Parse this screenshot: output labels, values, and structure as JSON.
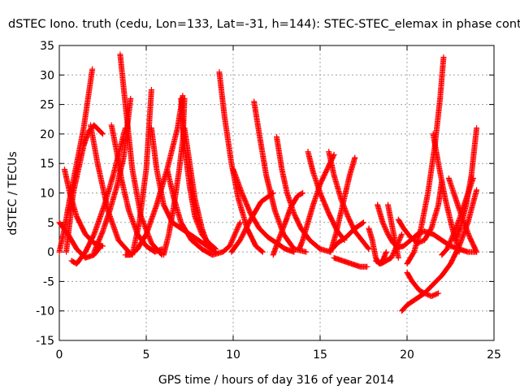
{
  "chart_data": {
    "type": "scatter",
    "title": "dSTEC Iono. truth (cedu, Lon=133, Lat=-31, h=144): STEC-STEC_elemax in phase cont",
    "xlabel": "GPS time / hours of day 316 of year 2014",
    "ylabel": "dSTEC  / TECUs",
    "xlim": [
      0,
      25
    ],
    "ylim": [
      -15,
      35
    ],
    "xticks": [
      0,
      5,
      10,
      15,
      20,
      25
    ],
    "yticks": [
      -15,
      -10,
      -5,
      0,
      5,
      10,
      15,
      20,
      25,
      30,
      35
    ],
    "xtick_labels": [
      "0",
      "5",
      "10",
      "15",
      "20",
      "25"
    ],
    "ytick_labels": [
      "-15",
      "-10",
      "-5",
      "0",
      "5",
      "10",
      "15",
      "20",
      "25",
      "30",
      "35"
    ],
    "grid": true,
    "marker": "plus",
    "color": "#ff0000",
    "series": [
      {
        "x": [
          0.0,
          0.3,
          0.6,
          1.0,
          1.4,
          1.9
        ],
        "y": [
          0.0,
          4.0,
          9.0,
          15.0,
          21.0,
          31.0
        ]
      },
      {
        "x": [
          0.0,
          0.5,
          1.0,
          1.5,
          2.0,
          2.4
        ],
        "y": [
          5.0,
          3.0,
          0.5,
          -1.0,
          -0.5,
          1.0
        ]
      },
      {
        "x": [
          0.3,
          0.6,
          1.0,
          1.5,
          2.0,
          2.5
        ],
        "y": [
          14.0,
          10.0,
          6.0,
          3.0,
          1.5,
          1.0
        ]
      },
      {
        "x": [
          0.4,
          0.6,
          0.8,
          1.1,
          1.4,
          1.7,
          2.0,
          2.5
        ],
        "y": [
          0.0,
          5.0,
          10.0,
          14.0,
          18.0,
          20.5,
          21.5,
          20.0
        ]
      },
      {
        "x": [
          0.7,
          1.0,
          1.5,
          2.0,
          2.6,
          3.1,
          3.8
        ],
        "y": [
          -1.5,
          -2.0,
          0.0,
          3.0,
          8.0,
          13.0,
          21.0
        ]
      },
      {
        "x": [
          1.8,
          2.2,
          2.8,
          3.4,
          4.0
        ],
        "y": [
          21.5,
          15.0,
          7.0,
          2.0,
          0.0
        ]
      },
      {
        "x": [
          2.0,
          2.5,
          2.9,
          3.3,
          3.7,
          4.1
        ],
        "y": [
          0.0,
          3.5,
          7.0,
          11.0,
          16.0,
          26.0
        ]
      },
      {
        "x": [
          3.0,
          3.3,
          3.6,
          4.0,
          4.5,
          5.0,
          5.5,
          5.9
        ],
        "y": [
          21.5,
          17.0,
          12.0,
          7.0,
          3.0,
          1.0,
          0.0,
          0.5
        ]
      },
      {
        "x": [
          3.5,
          3.8,
          4.2,
          4.7,
          5.3,
          5.9
        ],
        "y": [
          33.5,
          25.0,
          14.0,
          6.0,
          1.5,
          -0.5
        ]
      },
      {
        "x": [
          3.8,
          4.1,
          4.5,
          5.0,
          5.6,
          6.2,
          6.8,
          7.1
        ],
        "y": [
          -0.5,
          -0.5,
          0.5,
          3.0,
          8.0,
          14.0,
          21.0,
          26.5
        ]
      },
      {
        "x": [
          4.2,
          4.6,
          5.0,
          5.3
        ],
        "y": [
          -0.5,
          5.0,
          14.0,
          27.5
        ]
      },
      {
        "x": [
          5.3,
          5.6,
          6.0,
          6.5,
          7.0,
          7.5,
          8.0,
          8.5,
          9.0
        ],
        "y": [
          21.0,
          14.0,
          8.0,
          5.0,
          4.0,
          3.0,
          2.0,
          1.0,
          0.0
        ]
      },
      {
        "x": [
          6.0,
          6.3,
          6.6,
          6.9,
          7.1,
          7.2
        ],
        "y": [
          -0.5,
          3.0,
          8.0,
          14.0,
          19.0,
          26.0
        ]
      },
      {
        "x": [
          6.2,
          6.6,
          7.0,
          7.6,
          8.2,
          8.8,
          9.4,
          9.8,
          10.4
        ],
        "y": [
          14.0,
          9.0,
          5.0,
          2.0,
          0.5,
          -0.5,
          0.0,
          1.0,
          5.0
        ]
      },
      {
        "x": [
          7.0,
          7.2,
          7.5,
          7.8,
          8.2,
          8.6,
          9.0
        ],
        "y": [
          26.0,
          18.0,
          11.0,
          6.0,
          3.0,
          1.5,
          0.5
        ]
      },
      {
        "x": [
          7.2,
          7.5,
          7.8,
          8.2,
          8.5
        ],
        "y": [
          21.0,
          15.0,
          9.0,
          4.0,
          1.5
        ]
      },
      {
        "x": [
          9.2,
          9.5,
          9.9,
          10.3,
          10.8,
          11.3,
          11.7
        ],
        "y": [
          30.5,
          23.0,
          15.0,
          9.0,
          4.0,
          1.0,
          0.0
        ]
      },
      {
        "x": [
          9.9,
          10.4,
          11.0,
          11.6,
          12.3
        ],
        "y": [
          0.0,
          2.0,
          5.5,
          8.5,
          10.0
        ]
      },
      {
        "x": [
          10.0,
          10.5,
          11.0,
          11.5,
          12.0,
          12.5,
          13.0,
          13.5
        ],
        "y": [
          14.0,
          10.0,
          6.5,
          4.0,
          2.5,
          1.5,
          0.5,
          0.0
        ]
      },
      {
        "x": [
          11.2,
          11.5,
          11.9,
          12.4,
          12.9,
          13.5,
          14.2
        ],
        "y": [
          25.5,
          20.0,
          13.0,
          7.0,
          3.0,
          0.5,
          0.0
        ]
      },
      {
        "x": [
          12.3,
          12.6,
          13.0,
          13.3,
          13.7,
          14.0
        ],
        "y": [
          -0.5,
          2.0,
          5.0,
          7.5,
          9.5,
          10.0
        ]
      },
      {
        "x": [
          12.5,
          12.8,
          13.1,
          13.5,
          13.9,
          14.4,
          15.0,
          15.6
        ],
        "y": [
          19.5,
          14.0,
          10.0,
          6.5,
          4.0,
          2.0,
          0.5,
          0.0
        ]
      },
      {
        "x": [
          13.8,
          14.0,
          14.3,
          14.6,
          15.0,
          15.4,
          15.8
        ],
        "y": [
          0.5,
          2.0,
          5.0,
          8.0,
          11.5,
          14.0,
          16.5
        ]
      },
      {
        "x": [
          14.3,
          14.6,
          15.0,
          15.5,
          16.0,
          16.4
        ],
        "y": [
          17.0,
          13.5,
          10.0,
          6.5,
          3.5,
          2.0
        ]
      },
      {
        "x": [
          15.5,
          15.8,
          16.2,
          16.6,
          17.0,
          17.4,
          17.8
        ],
        "y": [
          17.0,
          13.0,
          9.0,
          6.0,
          3.5,
          2.0,
          0.5
        ]
      },
      {
        "x": [
          15.6,
          15.9,
          16.3,
          16.7,
          17.0
        ],
        "y": [
          0.0,
          3.0,
          8.0,
          13.0,
          16.0
        ]
      },
      {
        "x": [
          15.7,
          16.0,
          16.5,
          17.0,
          17.5
        ],
        "y": [
          0.5,
          1.5,
          2.5,
          4.0,
          5.0
        ]
      },
      {
        "x": [
          15.8,
          16.3,
          16.8,
          17.3,
          17.7
        ],
        "y": [
          -1.0,
          -1.5,
          -2.0,
          -2.5,
          -2.5
        ]
      },
      {
        "x": [
          17.8,
          18.0,
          18.2,
          18.4,
          18.6,
          18.8
        ],
        "y": [
          4.0,
          2.0,
          -1.0,
          -2.0,
          -1.5,
          0.0
        ]
      },
      {
        "x": [
          18.2,
          18.5,
          18.8,
          19.1,
          19.4,
          19.7
        ],
        "y": [
          -1.5,
          -2.0,
          -1.5,
          -1.0,
          1.0,
          3.0
        ]
      },
      {
        "x": [
          18.3,
          18.6,
          18.9,
          19.2,
          19.5,
          19.8,
          20.2,
          20.6,
          21.0,
          21.5,
          22.0,
          22.5,
          23.0,
          23.5,
          24.0
        ],
        "y": [
          8.0,
          5.0,
          3.0,
          1.5,
          0.8,
          1.0,
          2.0,
          3.0,
          3.5,
          3.0,
          2.0,
          1.0,
          0.5,
          0.0,
          0.0
        ]
      },
      {
        "x": [
          18.9,
          19.1,
          19.3,
          19.5
        ],
        "y": [
          8.0,
          5.0,
          2.0,
          -1.0
        ]
      },
      {
        "x": [
          19.5,
          19.8,
          20.2,
          20.6,
          21.0,
          21.4,
          21.8,
          22.0
        ],
        "y": [
          5.5,
          4.0,
          2.5,
          1.5,
          2.0,
          4.0,
          8.0,
          12.0
        ]
      },
      {
        "x": [
          19.7,
          20.0,
          20.5,
          21.0,
          21.5,
          22.0,
          22.5,
          23.0,
          23.5,
          24.0
        ],
        "y": [
          -10.0,
          -9.0,
          -8.0,
          -7.0,
          -5.5,
          -4.0,
          -2.0,
          1.0,
          5.0,
          10.5
        ]
      },
      {
        "x": [
          20.0,
          20.3,
          20.7,
          21.0,
          21.4,
          21.8
        ],
        "y": [
          -3.5,
          -5.0,
          -6.5,
          -7.0,
          -7.5,
          -7.0
        ]
      },
      {
        "x": [
          20.0,
          20.4,
          20.8,
          21.2,
          21.6,
          21.9,
          22.1
        ],
        "y": [
          -2.0,
          0.0,
          4.0,
          10.0,
          18.0,
          26.0,
          33.0
        ]
      },
      {
        "x": [
          21.5,
          21.8,
          22.2,
          22.6,
          23.0
        ],
        "y": [
          20.0,
          15.0,
          9.0,
          4.0,
          0.0
        ]
      },
      {
        "x": [
          22.0,
          22.3,
          22.6,
          23.0,
          23.4,
          23.8
        ],
        "y": [
          -0.5,
          0.5,
          2.5,
          5.5,
          9.0,
          12.5
        ]
      },
      {
        "x": [
          22.4,
          22.8,
          23.2,
          23.6,
          24.0
        ],
        "y": [
          12.5,
          9.0,
          5.5,
          2.5,
          0.0
        ]
      },
      {
        "x": [
          22.8,
          23.1,
          23.4,
          23.7,
          24.0
        ],
        "y": [
          2.0,
          4.5,
          8.0,
          13.0,
          21.0
        ]
      }
    ]
  }
}
